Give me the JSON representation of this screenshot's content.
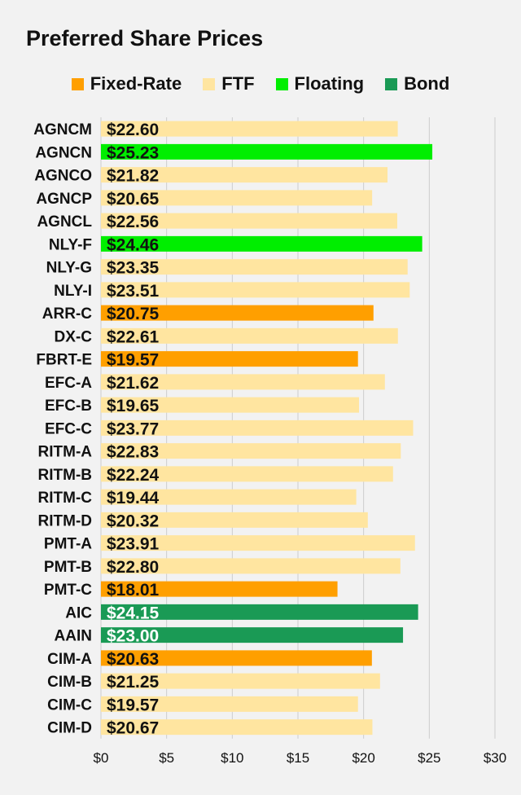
{
  "chart_data": {
    "type": "bar",
    "orientation": "horizontal",
    "title": "Preferred Share Prices",
    "xlabel": "",
    "ylabel": "",
    "xlim": [
      0,
      30
    ],
    "x_ticks": [
      0,
      5,
      10,
      15,
      20,
      25,
      30
    ],
    "x_tick_labels": [
      "$0",
      "$5",
      "$10",
      "$15",
      "$20",
      "$25",
      "$30"
    ],
    "grid": true,
    "legend_position": "top-center",
    "legend": [
      {
        "name": "Fixed-Rate",
        "color": "#ff9f00"
      },
      {
        "name": "FTF",
        "color": "#ffe5a0"
      },
      {
        "name": "Floating",
        "color": "#00ee00"
      },
      {
        "name": "Bond",
        "color": "#1a9a55"
      }
    ],
    "categories": [
      "AGNCM",
      "AGNCN",
      "AGNCO",
      "AGNCP",
      "AGNCL",
      "NLY-F",
      "NLY-G",
      "NLY-I",
      "ARR-C",
      "DX-C",
      "FBRT-E",
      "EFC-A",
      "EFC-B",
      "EFC-C",
      "RITM-A",
      "RITM-B",
      "RITM-C",
      "RITM-D",
      "PMT-A",
      "PMT-B",
      "PMT-C",
      "AIC",
      "AAIN",
      "CIM-A",
      "CIM-B",
      "CIM-C",
      "CIM-D"
    ],
    "values": [
      22.6,
      25.23,
      21.82,
      20.65,
      22.56,
      24.46,
      23.35,
      23.51,
      20.75,
      22.61,
      19.57,
      21.62,
      19.65,
      23.77,
      22.83,
      22.24,
      19.44,
      20.32,
      23.91,
      22.8,
      18.01,
      24.15,
      23.0,
      20.63,
      21.25,
      19.57,
      20.67
    ],
    "value_labels": [
      "$22.60",
      "$25.23",
      "$21.82",
      "$20.65",
      "$22.56",
      "$24.46",
      "$23.35",
      "$23.51",
      "$20.75",
      "$22.61",
      "$19.57",
      "$21.62",
      "$19.65",
      "$23.77",
      "$22.83",
      "$22.24",
      "$19.44",
      "$20.32",
      "$23.91",
      "$22.80",
      "$18.01",
      "$24.15",
      "$23.00",
      "$20.63",
      "$21.25",
      "$19.57",
      "$20.67"
    ],
    "types": [
      "FTF",
      "Floating",
      "FTF",
      "FTF",
      "FTF",
      "Floating",
      "FTF",
      "FTF",
      "Fixed-Rate",
      "FTF",
      "Fixed-Rate",
      "FTF",
      "FTF",
      "FTF",
      "FTF",
      "FTF",
      "FTF",
      "FTF",
      "FTF",
      "FTF",
      "Fixed-Rate",
      "Bond",
      "Bond",
      "Fixed-Rate",
      "FTF",
      "FTF",
      "FTF"
    ],
    "colors": {
      "grid": "#cccccc",
      "label_text": "#111111",
      "label_text_on_bond": "#ffffff"
    }
  }
}
